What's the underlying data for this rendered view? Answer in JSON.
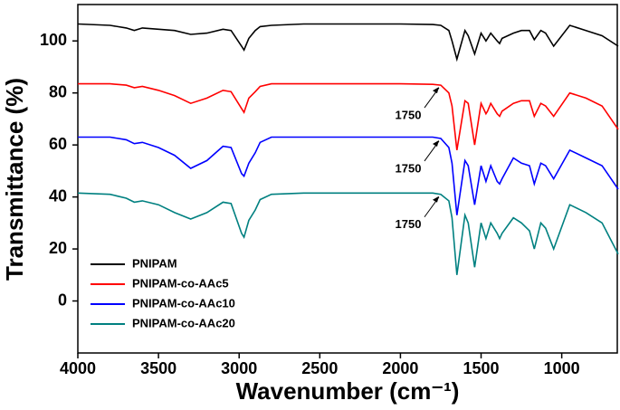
{
  "chart_data": {
    "type": "line",
    "xlabel": "Wavenumber (cm⁻¹)",
    "ylabel": "Transmittance (%)",
    "xlim": [
      4000,
      650
    ],
    "ylim": [
      -20,
      114
    ],
    "xticks": [
      4000,
      3500,
      3000,
      2500,
      2000,
      1500,
      1000
    ],
    "yticks": [
      0,
      20,
      40,
      60,
      80,
      100
    ],
    "legend": "lower left",
    "x": [
      4000,
      3800,
      3700,
      3650,
      3600,
      3500,
      3400,
      3300,
      3200,
      3100,
      3050,
      2985,
      2970,
      2940,
      2900,
      2870,
      2800,
      2600,
      2400,
      2200,
      2000,
      1800,
      1750,
      1700,
      1680,
      1650,
      1600,
      1580,
      1540,
      1500,
      1470,
      1460,
      1440,
      1400,
      1385,
      1370,
      1300,
      1250,
      1200,
      1170,
      1130,
      1100,
      1050,
      950,
      850,
      750,
      650
    ],
    "series": [
      {
        "name": "PNIPAM",
        "color": "#000000",
        "values": [
          106.5,
          106,
          105,
          104,
          105,
          104.5,
          104,
          102.5,
          103,
          104.5,
          104,
          98,
          96.5,
          101,
          104,
          105.5,
          106,
          106.5,
          106.5,
          106.5,
          106.5,
          106.3,
          106,
          104,
          100,
          93,
          104,
          102,
          95,
          103,
          100,
          101,
          103,
          100,
          99,
          101,
          103,
          104,
          104,
          100.5,
          104,
          103,
          98,
          106,
          104,
          102,
          98
        ]
      },
      {
        "name": "PNIPAM-co-AAc5",
        "color": "#ff0000",
        "values": [
          83.5,
          83.5,
          83,
          82,
          82.5,
          81,
          79,
          76,
          78,
          81,
          80.5,
          74,
          72.5,
          78,
          80.5,
          82.5,
          83.5,
          83.5,
          83.5,
          83.5,
          83.5,
          83.3,
          83,
          80,
          75,
          58,
          77,
          76,
          60,
          76,
          72,
          73,
          76,
          72,
          71,
          73,
          76,
          77,
          77,
          71,
          76,
          75,
          71,
          80,
          78,
          75,
          66
        ]
      },
      {
        "name": "PNIPAM-co-AAc10",
        "color": "#0000ff",
        "values": [
          63,
          63,
          62,
          60.5,
          61,
          59,
          56,
          51,
          54,
          59.5,
          59,
          49,
          48,
          53,
          57,
          61,
          63,
          63,
          63,
          63,
          63,
          63,
          62.5,
          59,
          53,
          33,
          54,
          52,
          37,
          52,
          46,
          48,
          52,
          46,
          45,
          47,
          55,
          53,
          52,
          45,
          53,
          52,
          47,
          58,
          55,
          52,
          43
        ]
      },
      {
        "name": "PNIPAM-co-AAc20",
        "color": "#008080",
        "values": [
          41.5,
          41,
          39.5,
          38,
          38.5,
          37,
          34,
          31.5,
          34,
          38,
          37.5,
          26,
          24.5,
          31,
          35,
          39,
          41,
          41.5,
          41.5,
          41.5,
          41.5,
          41.5,
          41,
          38.5,
          32,
          10,
          33,
          30,
          13,
          30,
          24,
          26,
          30,
          26,
          24,
          26,
          32,
          30,
          27,
          20,
          30,
          28,
          20,
          37,
          34,
          30,
          18
        ]
      }
    ],
    "annotations": [
      {
        "text": "1750"
      },
      {
        "text": "1750"
      },
      {
        "text": "1750"
      }
    ]
  }
}
